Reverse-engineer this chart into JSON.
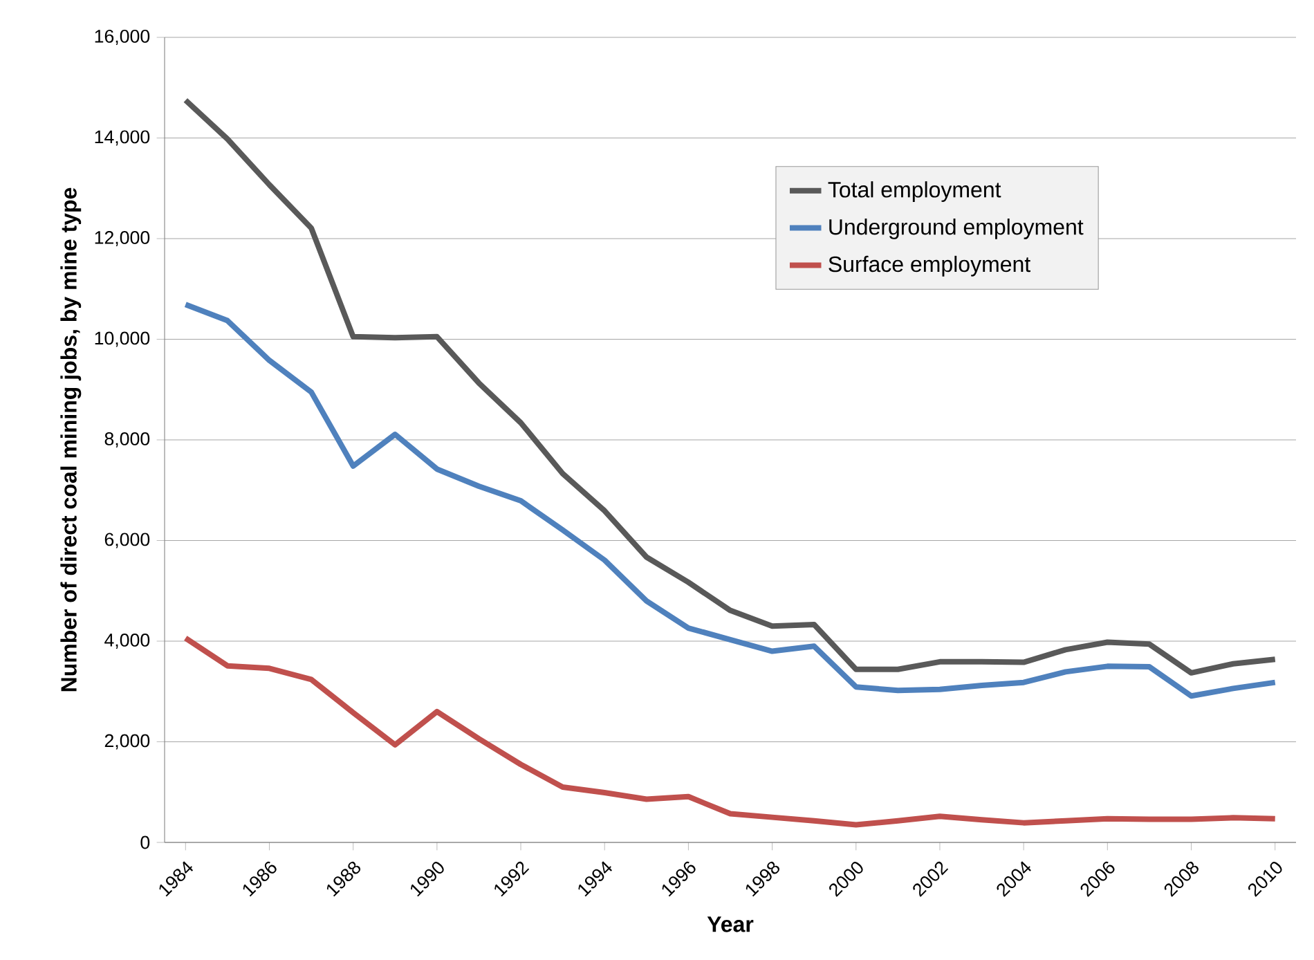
{
  "chart_data": {
    "type": "line",
    "xlabel": "Year",
    "ylabel": "Number of direct coal mining jobs, by mine type",
    "x": [
      1984,
      1985,
      1986,
      1987,
      1988,
      1989,
      1990,
      1991,
      1992,
      1993,
      1994,
      1995,
      1996,
      1997,
      1998,
      1999,
      2000,
      2001,
      2002,
      2003,
      2004,
      2005,
      2006,
      2007,
      2008,
      2009,
      2010
    ],
    "series": [
      {
        "name": "Total employment",
        "color": "#595959",
        "values": [
          14750,
          13980,
          13070,
          12210,
          10050,
          10030,
          10050,
          9130,
          8340,
          7330,
          6590,
          5670,
          5170,
          4610,
          4300,
          4330,
          3440,
          3440,
          3590,
          3590,
          3580,
          3830,
          3980,
          3940,
          3370,
          3550,
          3640
        ]
      },
      {
        "name": "Underground employment",
        "color": "#4f81bd",
        "values": [
          10690,
          10370,
          9580,
          8950,
          7480,
          8110,
          7420,
          7080,
          6790,
          6210,
          5610,
          4800,
          4260,
          4030,
          3800,
          3900,
          3090,
          3020,
          3040,
          3120,
          3180,
          3390,
          3500,
          3490,
          2910,
          3060,
          3180
        ]
      },
      {
        "name": "Surface employment",
        "color": "#c0504d",
        "values": [
          4060,
          3510,
          3460,
          3240,
          2580,
          1940,
          2600,
          2060,
          1550,
          1100,
          990,
          860,
          910,
          570,
          500,
          430,
          350,
          430,
          520,
          450,
          390,
          430,
          470,
          460,
          460,
          490,
          470
        ]
      }
    ],
    "xlim": [
      1983.5,
      2010.5
    ],
    "xticks": [
      1984,
      1986,
      1988,
      1990,
      1992,
      1994,
      1996,
      1998,
      2000,
      2002,
      2004,
      2006,
      2008,
      2010
    ],
    "ylim": [
      0,
      16000
    ],
    "yticks": [
      0,
      {
        "value": 2000,
        "label": "2,000"
      },
      {
        "value": 4000,
        "label": "4,000"
      },
      {
        "value": 6000,
        "label": "6,000"
      },
      {
        "value": 8000,
        "label": "8,000"
      },
      {
        "value": 10000,
        "label": "10,000"
      },
      {
        "value": 12000,
        "label": "12,000"
      },
      {
        "value": 14000,
        "label": "14,000"
      },
      {
        "value": 16000,
        "label": "16,000"
      }
    ],
    "grid": "y",
    "legend": "top right",
    "marker": "none",
    "line_style": "solid"
  }
}
